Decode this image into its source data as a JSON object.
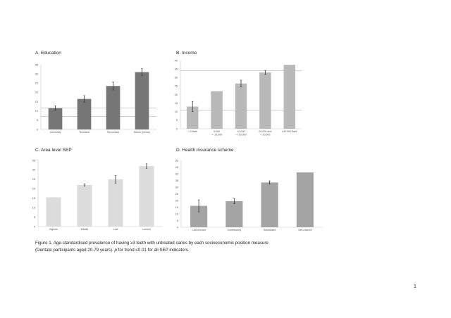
{
  "panels": [
    {
      "title": "A. Education"
    },
    {
      "title": "B. Income"
    },
    {
      "title": "C. Area level SEP"
    },
    {
      "title": "D. Health insurance scheme"
    }
  ],
  "chart_data": [
    {
      "type": "bar",
      "title": "A. Education",
      "categories": [
        "University",
        "Technical",
        "Secondary",
        "Below primary"
      ],
      "values": [
        11.5,
        16.5,
        23.5,
        31
      ],
      "error": [
        1.2,
        1.8,
        2.2,
        2.0
      ],
      "yticks": [
        "0",
        "5",
        "10",
        "15",
        "20",
        "25",
        "30",
        "35"
      ],
      "ylim": [
        0,
        35
      ],
      "reference_lines": [
        11.5,
        7
      ],
      "bar_color": "#767676",
      "grid": false
    },
    {
      "type": "bar",
      "title": "B. Income",
      "categories": [
        "< 5 Bath",
        "5,000\n-< 10,000",
        "10,000\n-< 20,000",
        "20,000 and\n< 30,000",
        "≥30,000 Baht"
      ],
      "values": [
        13,
        22,
        26.5,
        33,
        37.5
      ],
      "error": [
        3.0,
        0,
        2.0,
        1.2,
        0
      ],
      "yticks": [
        "0",
        "5",
        "10",
        "15",
        "20",
        "25",
        "30",
        "35",
        "40"
      ],
      "ylim": [
        0,
        40
      ],
      "reference_lines": [
        34,
        11
      ],
      "bar_color": "#b9b9b9",
      "grid": false
    },
    {
      "type": "bar",
      "title": "C. Area level SEP",
      "categories": [
        "Highest",
        "Middle",
        "Low",
        "Lowest"
      ],
      "values": [
        15.5,
        22,
        25,
        32
      ],
      "error": [
        0,
        0.6,
        2.0,
        1.2
      ],
      "yticks": [
        "0",
        "5",
        "10",
        "15",
        "20",
        "25",
        "30",
        "35"
      ],
      "ylim": [
        0,
        35
      ],
      "reference_lines": [],
      "bar_color": "#dcdcdc",
      "grid": false
    },
    {
      "type": "bar",
      "title": "D. Health insurance scheme",
      "categories": [
        "Civil servant",
        "Contributory",
        "Subsidised",
        "Self-insured"
      ],
      "values": [
        16,
        19.5,
        33.5,
        41
      ],
      "error": [
        4.5,
        2.0,
        1.2,
        0
      ],
      "yticks": [
        "0",
        "5",
        "10",
        "15",
        "20",
        "25",
        "30",
        "35",
        "40",
        "45",
        "50"
      ],
      "ylim": [
        0,
        50
      ],
      "reference_lines": [],
      "bar_color": "#a4a4a4",
      "grid": false
    }
  ],
  "caption": {
    "line1": "Figure 1. Age-standardised prevalence of having ≥3 teeth with untreated caries by each socioeconomic position measure",
    "line2_a": "(Dentate participants aged 20-79 years). ",
    "line2_p": "p",
    "line2_b": " for trend ≤0.01 for all SEP indicators."
  },
  "page_number": "1"
}
